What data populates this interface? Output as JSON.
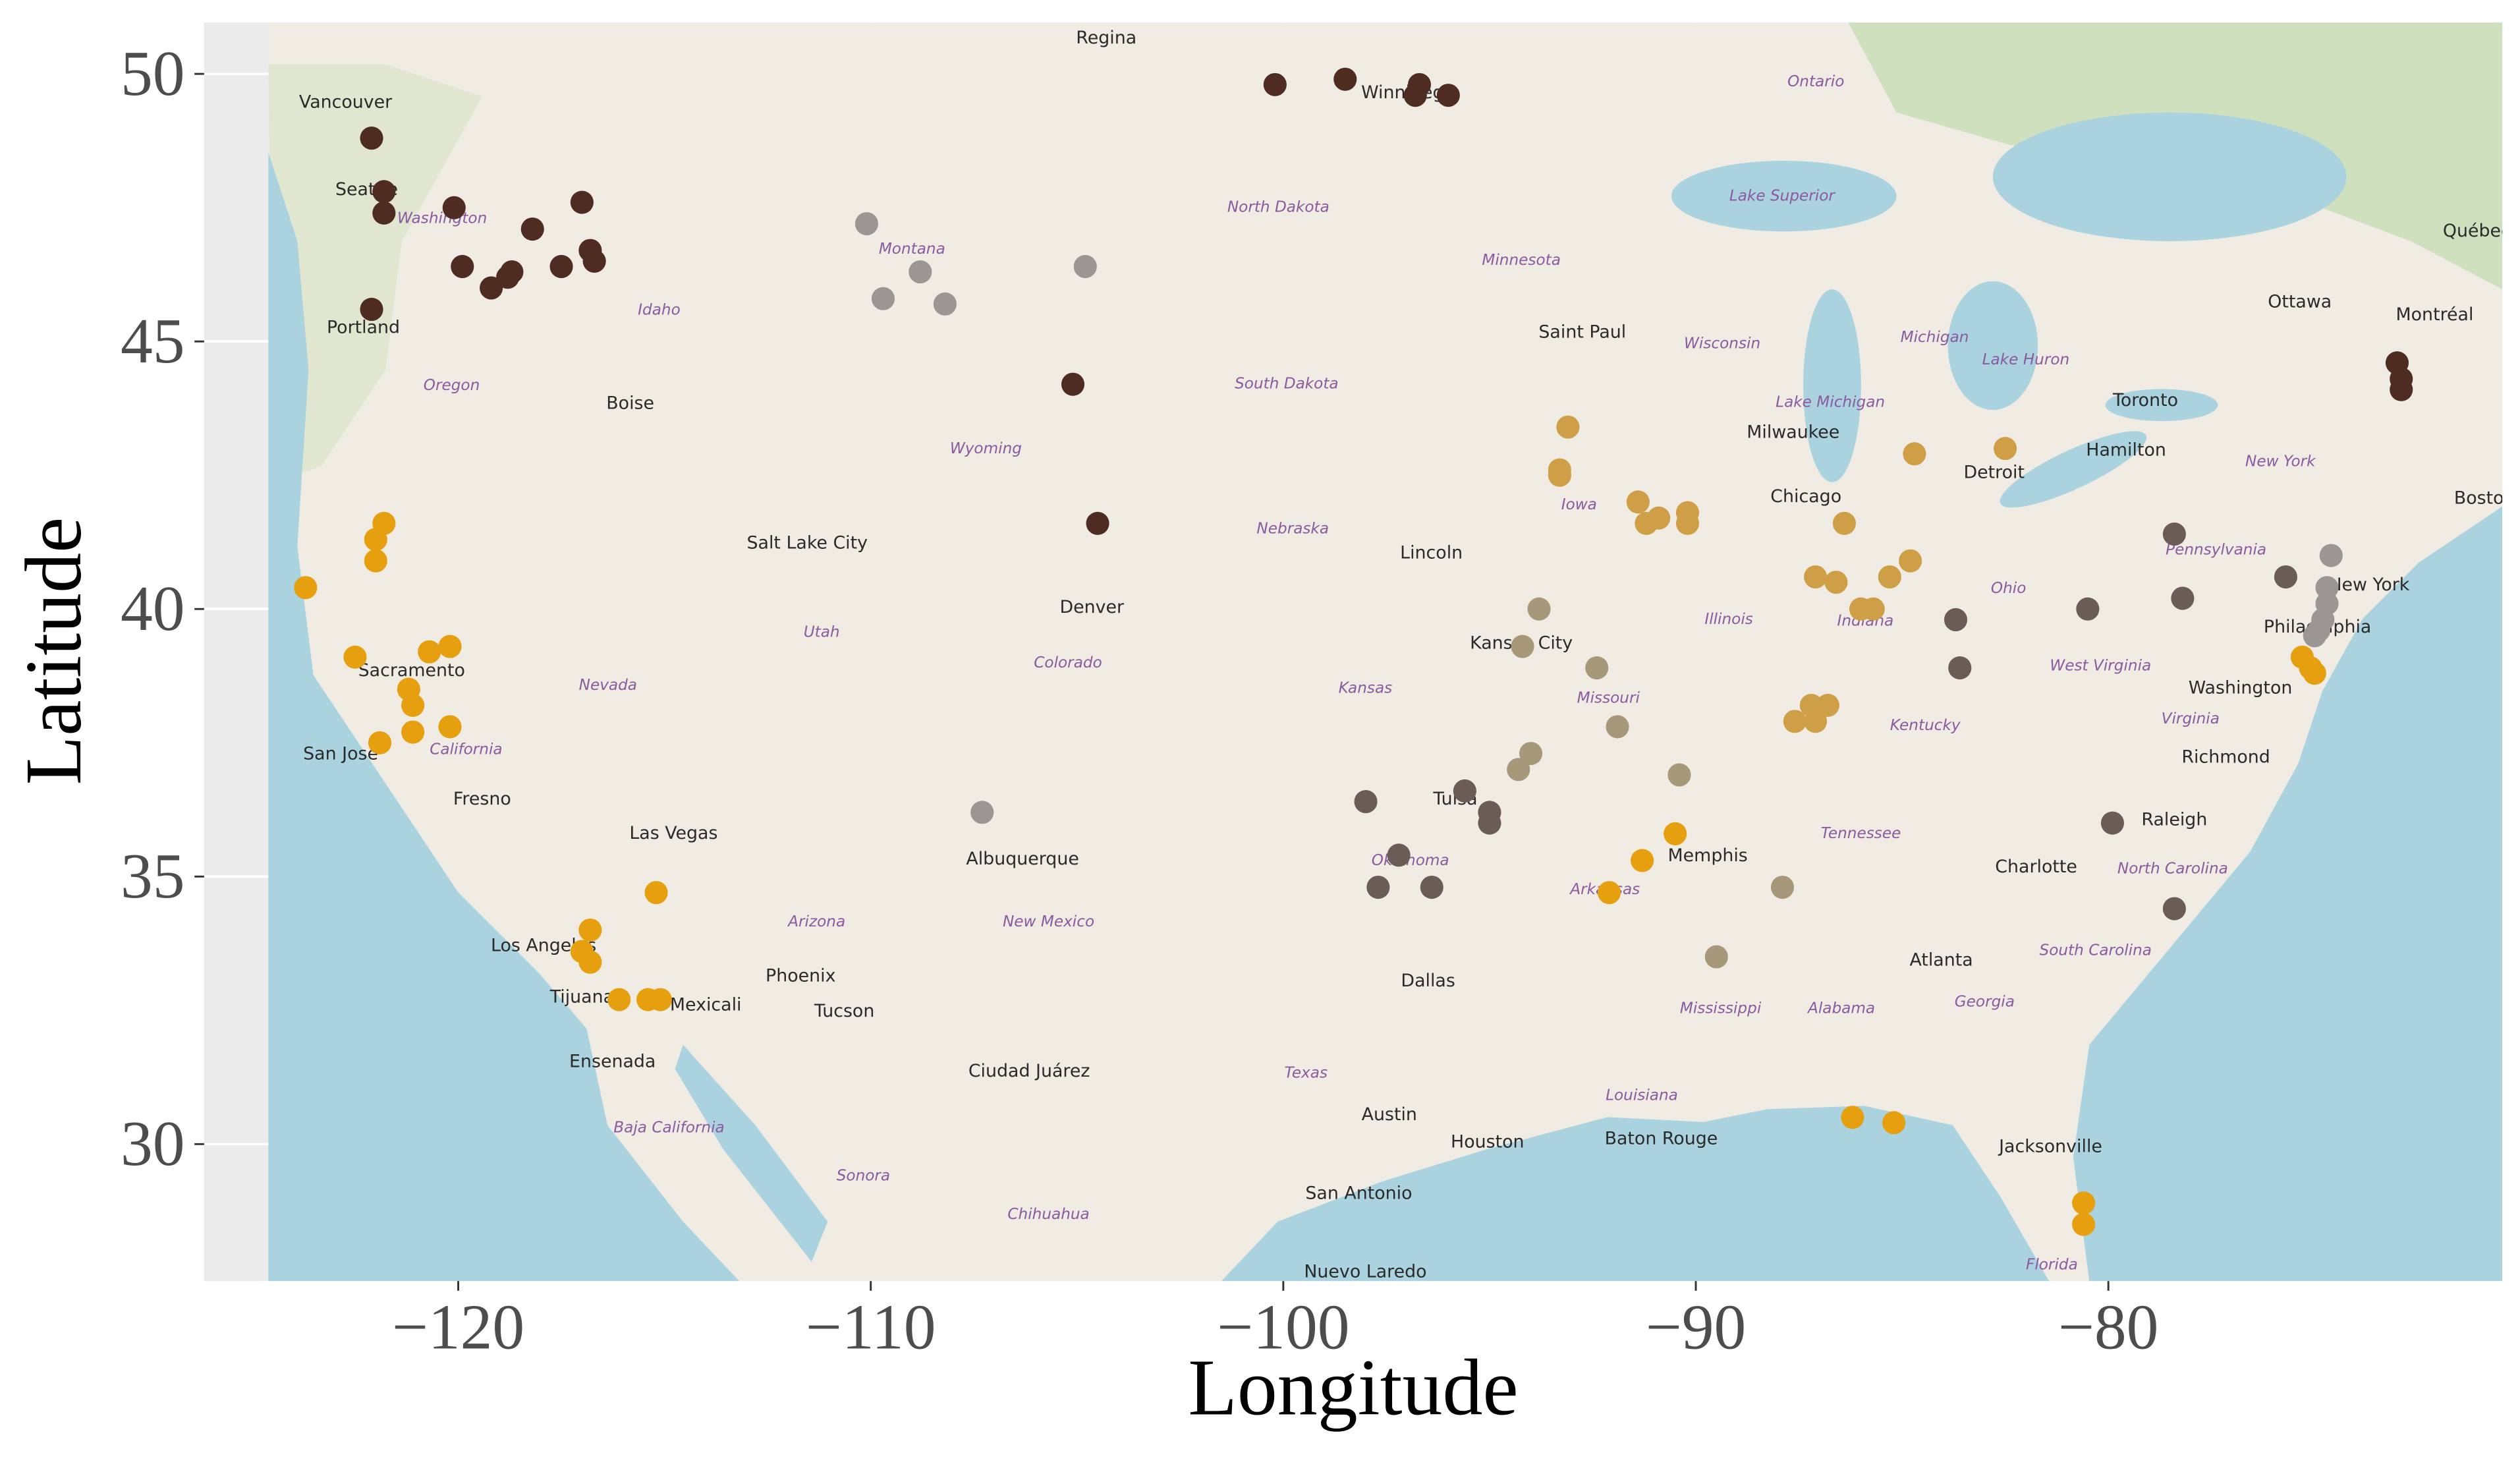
{
  "chart_data": {
    "type": "scatter",
    "x_label": "Longitude",
    "y_label": "Latitude",
    "xlim": [
      -126.16,
      -70.45
    ],
    "ylim": [
      27.44,
      50.96
    ],
    "xticks": [
      {
        "value": -120,
        "label": "−120"
      },
      {
        "value": -110,
        "label": "−110"
      },
      {
        "value": -100,
        "label": "−100"
      },
      {
        "value": -90,
        "label": "−90"
      },
      {
        "value": -80,
        "label": "−80"
      }
    ],
    "yticks": [
      30,
      35,
      40,
      45,
      50
    ],
    "grid": true,
    "series": [
      {
        "color": "#4e2c22",
        "x": [
          -122.1,
          -121.8,
          -121.8,
          -120.1,
          -122.1,
          -119.9,
          -119.2,
          -118.8,
          -118.7,
          -118.2,
          -117.5,
          -117.0,
          -116.8,
          -116.7,
          -100.2,
          -98.5,
          -96.8,
          -96.7,
          -96.0,
          -105.1,
          -104.5,
          -73.0,
          -72.9,
          -72.9
        ],
        "values": [
          48.8,
          47.8,
          47.4,
          47.5,
          45.6,
          46.4,
          46.0,
          46.2,
          46.3,
          47.1,
          46.4,
          47.6,
          46.7,
          46.5,
          49.8,
          49.9,
          49.6,
          49.8,
          49.6,
          44.2,
          41.6,
          44.6,
          44.3,
          44.1
        ]
      },
      {
        "color": "#6b5c57",
        "x": [
          -98.0,
          -97.2,
          -97.7,
          -96.4,
          -95.6,
          -95.0,
          -95.0,
          -78.4,
          -75.7,
          -78.2,
          -80.5,
          -83.7,
          -83.6,
          -79.9,
          -78.4
        ],
        "values": [
          36.4,
          35.4,
          34.8,
          34.8,
          36.6,
          36.2,
          36.0,
          41.4,
          40.6,
          40.2,
          40.0,
          39.8,
          38.9,
          36.0,
          34.4
        ]
      },
      {
        "color": "#9a9693",
        "x": [
          -110.1,
          -109.7,
          -108.8,
          -108.2,
          -104.8,
          -107.3,
          -74.6,
          -74.7,
          -74.7,
          -74.8,
          -74.9,
          -75.0
        ],
        "values": [
          47.2,
          45.8,
          46.3,
          45.7,
          46.4,
          36.2,
          41.0,
          40.4,
          40.1,
          39.8,
          39.6,
          39.5
        ]
      },
      {
        "color": "#a8987a",
        "x": [
          -93.8,
          -94.2,
          -92.4,
          -91.9,
          -94.0,
          -94.3,
          -90.4,
          -87.9,
          -89.5
        ],
        "values": [
          40.0,
          39.3,
          38.9,
          37.8,
          37.3,
          37.0,
          36.9,
          34.8,
          33.5
        ]
      },
      {
        "color": "#cf9f47",
        "x": [
          -93.1,
          -93.3,
          -93.3,
          -91.4,
          -91.2,
          -90.9,
          -90.2,
          -90.2,
          -86.4,
          -84.7,
          -82.5,
          -87.1,
          -86.6,
          -85.3,
          -84.8,
          -86.0,
          -85.7,
          -87.6,
          -87.2,
          -86.8,
          -87.1
        ],
        "values": [
          43.4,
          42.6,
          42.5,
          42.0,
          41.6,
          41.7,
          41.8,
          41.6,
          41.6,
          42.9,
          43.0,
          40.6,
          40.5,
          40.6,
          40.9,
          40.0,
          40.0,
          37.9,
          38.2,
          38.2,
          37.9
        ]
      },
      {
        "color": "#e69f0e",
        "x": [
          -123.7,
          -121.8,
          -122.0,
          -122.0,
          -122.5,
          -121.2,
          -121.1,
          -121.1,
          -120.7,
          -120.2,
          -120.2,
          -121.9,
          -115.2,
          -116.8,
          -117.0,
          -116.8,
          -116.1,
          -115.4,
          -115.1,
          -90.5,
          -91.3,
          -92.1,
          -86.2,
          -85.2,
          -80.6,
          -80.6,
          -75.3,
          -75.1,
          -75.0
        ],
        "values": [
          40.4,
          41.6,
          41.3,
          40.9,
          39.1,
          38.5,
          38.2,
          37.7,
          39.2,
          39.3,
          37.8,
          37.5,
          34.7,
          34.0,
          33.6,
          33.4,
          32.7,
          32.7,
          32.7,
          35.8,
          35.3,
          34.7,
          30.5,
          30.4,
          28.9,
          28.5,
          39.1,
          38.9,
          38.8
        ]
      }
    ],
    "places": [
      {
        "name": "Regina",
        "kind": "city",
        "lon": -104.29,
        "lat": 50.66
      },
      {
        "name": "Winnipeg",
        "kind": "city",
        "lon": -97.11,
        "lat": 49.64
      },
      {
        "name": "Vancouver",
        "kind": "city",
        "lon": -122.73,
        "lat": 49.46
      },
      {
        "name": "Seattle",
        "kind": "city",
        "lon": -122.22,
        "lat": 47.83
      },
      {
        "name": "Washington",
        "kind": "region",
        "lon": -120.39,
        "lat": 47.29
      },
      {
        "name": "Portland",
        "kind": "city",
        "lon": -122.3,
        "lat": 45.25
      },
      {
        "name": "Oregon",
        "kind": "region",
        "lon": -120.16,
        "lat": 44.17
      },
      {
        "name": "Boise",
        "kind": "city",
        "lon": -115.83,
        "lat": 43.83
      },
      {
        "name": "Idaho",
        "kind": "region",
        "lon": -115.13,
        "lat": 45.58
      },
      {
        "name": "Montana",
        "kind": "region",
        "lon": -109.0,
        "lat": 46.72
      },
      {
        "name": "North Dakota",
        "kind": "region",
        "lon": -100.12,
        "lat": 47.5
      },
      {
        "name": "Minnesota",
        "kind": "region",
        "lon": -94.23,
        "lat": 46.51
      },
      {
        "name": "South Dakota",
        "kind": "region",
        "lon": -99.92,
        "lat": 44.2
      },
      {
        "name": "Wyoming",
        "kind": "region",
        "lon": -107.21,
        "lat": 42.99
      },
      {
        "name": "Salt Lake City",
        "kind": "city",
        "lon": -111.54,
        "lat": 41.22
      },
      {
        "name": "Utah",
        "kind": "region",
        "lon": -111.19,
        "lat": 39.56
      },
      {
        "name": "Nevada",
        "kind": "region",
        "lon": -116.37,
        "lat": 38.57
      },
      {
        "name": "Sacramento",
        "kind": "city",
        "lon": -121.13,
        "lat": 38.84
      },
      {
        "name": "San Jose",
        "kind": "city",
        "lon": -122.85,
        "lat": 37.28
      },
      {
        "name": "California",
        "kind": "region",
        "lon": -119.81,
        "lat": 37.37
      },
      {
        "name": "Fresno",
        "kind": "city",
        "lon": -119.42,
        "lat": 36.44
      },
      {
        "name": "Las Vegas",
        "kind": "city",
        "lon": -114.78,
        "lat": 35.8
      },
      {
        "name": "Los Angeles",
        "kind": "city",
        "lon": -117.93,
        "lat": 33.7
      },
      {
        "name": "Tijuana",
        "kind": "city",
        "lon": -117.0,
        "lat": 32.74
      },
      {
        "name": "Mexicali",
        "kind": "city",
        "lon": -114.0,
        "lat": 32.59
      },
      {
        "name": "Ensenada",
        "kind": "city",
        "lon": -116.26,
        "lat": 31.53
      },
      {
        "name": "Baja California",
        "kind": "region",
        "lon": -114.89,
        "lat": 30.3
      },
      {
        "name": "Phoenix",
        "kind": "city",
        "lon": -111.7,
        "lat": 33.13
      },
      {
        "name": "Tucson",
        "kind": "city",
        "lon": -110.64,
        "lat": 32.47
      },
      {
        "name": "Arizona",
        "kind": "region",
        "lon": -111.31,
        "lat": 34.15
      },
      {
        "name": "Albuquerque",
        "kind": "city",
        "lon": -106.32,
        "lat": 35.32
      },
      {
        "name": "New Mexico",
        "kind": "region",
        "lon": -105.69,
        "lat": 34.15
      },
      {
        "name": "Denver",
        "kind": "city",
        "lon": -104.64,
        "lat": 40.02
      },
      {
        "name": "Colorado",
        "kind": "region",
        "lon": -105.22,
        "lat": 38.99
      },
      {
        "name": "Nebraska",
        "kind": "region",
        "lon": -99.77,
        "lat": 41.49
      },
      {
        "name": "Lincoln",
        "kind": "city",
        "lon": -96.41,
        "lat": 41.04
      },
      {
        "name": "Kansas",
        "kind": "region",
        "lon": -98.01,
        "lat": 38.51
      },
      {
        "name": "Kansas City",
        "kind": "city",
        "lon": -94.23,
        "lat": 39.35
      },
      {
        "name": "Iowa",
        "kind": "region",
        "lon": -92.83,
        "lat": 41.94
      },
      {
        "name": "Missouri",
        "kind": "region",
        "lon": -92.12,
        "lat": 38.33
      },
      {
        "name": "Oklahoma",
        "kind": "region",
        "lon": -96.92,
        "lat": 35.29
      },
      {
        "name": "Tulsa",
        "kind": "city",
        "lon": -95.83,
        "lat": 36.44
      },
      {
        "name": "Dallas",
        "kind": "city",
        "lon": -96.49,
        "lat": 33.04
      },
      {
        "name": "Texas",
        "kind": "region",
        "lon": -99.45,
        "lat": 31.32
      },
      {
        "name": "Austin",
        "kind": "city",
        "lon": -97.43,
        "lat": 30.54
      },
      {
        "name": "Houston",
        "kind": "city",
        "lon": -95.05,
        "lat": 30.03
      },
      {
        "name": "San Antonio",
        "kind": "city",
        "lon": -98.17,
        "lat": 29.07
      },
      {
        "name": "Ciudad Juárez",
        "kind": "city",
        "lon": -106.16,
        "lat": 31.35
      },
      {
        "name": "Sonora",
        "kind": "region",
        "lon": -110.18,
        "lat": 29.4
      },
      {
        "name": "Chihuahua",
        "kind": "region",
        "lon": -105.69,
        "lat": 28.68
      },
      {
        "name": "Nuevo Laredo",
        "kind": "city",
        "lon": -98.01,
        "lat": 27.6
      },
      {
        "name": "Arkansas",
        "kind": "region",
        "lon": -92.2,
        "lat": 34.75
      },
      {
        "name": "Louisiana",
        "kind": "region",
        "lon": -91.31,
        "lat": 30.9
      },
      {
        "name": "Baton Rouge",
        "kind": "city",
        "lon": -90.84,
        "lat": 30.09
      },
      {
        "name": "Mississippi",
        "kind": "region",
        "lon": -89.4,
        "lat": 32.53
      },
      {
        "name": "Memphis",
        "kind": "city",
        "lon": -89.71,
        "lat": 35.38
      },
      {
        "name": "Tennessee",
        "kind": "region",
        "lon": -86.0,
        "lat": 35.8
      },
      {
        "name": "Alabama",
        "kind": "region",
        "lon": -86.47,
        "lat": 32.53
      },
      {
        "name": "Georgia",
        "kind": "region",
        "lon": -83.0,
        "lat": 32.65
      },
      {
        "name": "Atlanta",
        "kind": "city",
        "lon": -84.05,
        "lat": 33.43
      },
      {
        "name": "Jacksonville",
        "kind": "city",
        "lon": -81.4,
        "lat": 29.94
      },
      {
        "name": "Florida",
        "kind": "region",
        "lon": -81.37,
        "lat": 27.74
      },
      {
        "name": "South Carolina",
        "kind": "region",
        "lon": -80.31,
        "lat": 33.61
      },
      {
        "name": "North Carolina",
        "kind": "region",
        "lon": -78.44,
        "lat": 35.14
      },
      {
        "name": "Charlotte",
        "kind": "city",
        "lon": -81.75,
        "lat": 35.17
      },
      {
        "name": "Raleigh",
        "kind": "city",
        "lon": -78.4,
        "lat": 36.05
      },
      {
        "name": "Richmond",
        "kind": "city",
        "lon": -77.15,
        "lat": 37.22
      },
      {
        "name": "Virginia",
        "kind": "region",
        "lon": -78.01,
        "lat": 37.94
      },
      {
        "name": "West Virginia",
        "kind": "region",
        "lon": -80.19,
        "lat": 38.93
      },
      {
        "name": "Washington",
        "kind": "city",
        "lon": -76.8,
        "lat": 38.51
      },
      {
        "name": "Philadelphia",
        "kind": "city",
        "lon": -74.93,
        "lat": 39.65
      },
      {
        "name": "New York",
        "kind": "city",
        "lon": -73.68,
        "lat": 40.44
      },
      {
        "name": "Pennsylvania",
        "kind": "region",
        "lon": -77.39,
        "lat": 41.1
      },
      {
        "name": "Ohio",
        "kind": "region",
        "lon": -82.42,
        "lat": 40.38
      },
      {
        "name": "Indiana",
        "kind": "region",
        "lon": -85.89,
        "lat": 39.77
      },
      {
        "name": "Illinois",
        "kind": "region",
        "lon": -89.2,
        "lat": 39.8
      },
      {
        "name": "Kentucky",
        "kind": "region",
        "lon": -84.44,
        "lat": 37.82
      },
      {
        "name": "Chicago",
        "kind": "city",
        "lon": -87.33,
        "lat": 42.09
      },
      {
        "name": "Milwaukee",
        "kind": "city",
        "lon": -87.64,
        "lat": 43.29
      },
      {
        "name": "Wisconsin",
        "kind": "region",
        "lon": -89.36,
        "lat": 44.95
      },
      {
        "name": "Michigan",
        "kind": "region",
        "lon": -84.21,
        "lat": 45.07
      },
      {
        "name": "Lake Michigan",
        "kind": "region",
        "lon": -86.74,
        "lat": 43.86
      },
      {
        "name": "Lake Superior",
        "kind": "region",
        "lon": -87.91,
        "lat": 47.71
      },
      {
        "name": "Lake Huron",
        "kind": "region",
        "lon": -82.0,
        "lat": 44.65
      },
      {
        "name": "Saint Paul",
        "kind": "city",
        "lon": -92.75,
        "lat": 45.16
      },
      {
        "name": "Detroit",
        "kind": "city",
        "lon": -82.77,
        "lat": 42.54
      },
      {
        "name": "Toronto",
        "kind": "city",
        "lon": -79.1,
        "lat": 43.89
      },
      {
        "name": "Hamilton",
        "kind": "city",
        "lon": -79.57,
        "lat": 42.96
      },
      {
        "name": "Ottawa",
        "kind": "city",
        "lon": -75.36,
        "lat": 45.73
      },
      {
        "name": "Montréal",
        "kind": "city",
        "lon": -72.09,
        "lat": 45.49
      },
      {
        "name": "Québec",
        "kind": "city",
        "lon": -71.07,
        "lat": 47.05
      },
      {
        "name": "Ontario",
        "kind": "region",
        "lon": -87.09,
        "lat": 49.85
      },
      {
        "name": "New York",
        "kind": "region",
        "lon": -75.83,
        "lat": 42.75
      },
      {
        "name": "Boston",
        "kind": "city",
        "lon": -70.88,
        "lat": 42.06
      }
    ]
  }
}
